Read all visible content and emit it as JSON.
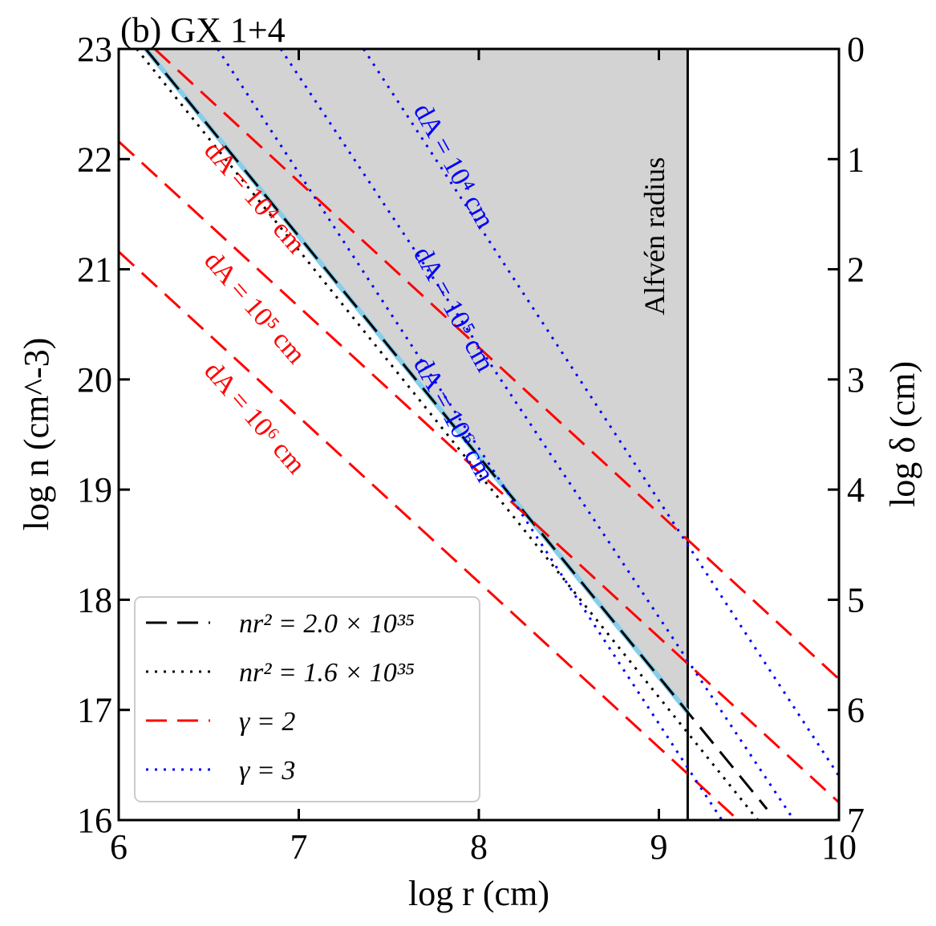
{
  "chart_data": {
    "type": "line",
    "title": "(b) GX 1+4",
    "xlabel": "log r (cm)",
    "ylabel": "log n (cm^-3)",
    "y2label": "log δ (cm)",
    "xlim": [
      6,
      10
    ],
    "ylim": [
      16,
      23
    ],
    "y2lim": [
      0,
      7
    ],
    "x_ticks": [
      "6",
      "7",
      "8",
      "9",
      "10"
    ],
    "y_ticks": [
      "16",
      "17",
      "18",
      "19",
      "20",
      "21",
      "22",
      "23"
    ],
    "y2_ticks": [
      "0",
      "1",
      "2",
      "3",
      "4",
      "5",
      "6",
      "7"
    ],
    "alfven_radius_log_r": 9.16,
    "shaded_region": "accretion region: log r from 6 to 9.16, between nr^2 = 2.0x10^35 line and log n = 23",
    "series": [
      {
        "name": "nr^2 = 2.0x10^35",
        "style": "dashed",
        "color": "#000000",
        "width": 3,
        "points": [
          [
            6.15,
            23.0
          ],
          [
            9.6,
            16.1
          ]
        ]
      },
      {
        "name": "nr^2 = 1.6x10^35",
        "style": "dotted",
        "color": "#000000",
        "width": 3,
        "points": [
          [
            6.1,
            23.0
          ],
          [
            9.55,
            16.0
          ]
        ]
      },
      {
        "name": "accretion column (fill boundary)",
        "style": "solid",
        "color": "#87ceeb",
        "width": 6,
        "legend": false,
        "points": [
          [
            6.15,
            23.0
          ],
          [
            9.16,
            16.98
          ]
        ]
      },
      {
        "name": "gamma = 2, dA = 10^4 cm",
        "style": "dashed",
        "color": "#ff0000",
        "width": 3,
        "points": [
          [
            6.2,
            23.0
          ],
          [
            10.0,
            17.28
          ]
        ]
      },
      {
        "name": "gamma = 2, dA = 10^5 cm",
        "style": "dashed",
        "color": "#ff0000",
        "width": 3,
        "points": [
          [
            6.0,
            22.16
          ],
          [
            10.0,
            16.16
          ]
        ]
      },
      {
        "name": "gamma = 2, dA = 10^6 cm",
        "style": "dashed",
        "color": "#ff0000",
        "width": 3,
        "points": [
          [
            6.0,
            21.16
          ],
          [
            9.44,
            16.0
          ]
        ]
      },
      {
        "name": "gamma = 3, dA = 10^4 cm",
        "style": "dotted",
        "color": "#0000ff",
        "width": 3,
        "points": [
          [
            7.36,
            23.0
          ],
          [
            10.0,
            16.4
          ]
        ]
      },
      {
        "name": "gamma = 3, dA = 10^5 cm",
        "style": "dotted",
        "color": "#0000ff",
        "width": 3,
        "points": [
          [
            6.9,
            23.0
          ],
          [
            9.75,
            16.0
          ]
        ]
      },
      {
        "name": "gamma = 3, dA = 10^6 cm",
        "style": "dotted",
        "color": "#0000ff",
        "width": 3,
        "points": [
          [
            6.55,
            23.0
          ],
          [
            9.35,
            16.0
          ]
        ]
      }
    ],
    "legend": {
      "position": "bottom-left",
      "entries": [
        {
          "label": "nr² = 2.0 × 10³⁵",
          "style": "dashed",
          "color": "#000000"
        },
        {
          "label": "nr² = 1.6 × 10³⁵",
          "style": "dotted",
          "color": "#000000"
        },
        {
          "label": "γ = 2",
          "style": "dashed",
          "color": "#ff0000"
        },
        {
          "label": "γ = 3",
          "style": "dotted",
          "color": "#0000ff"
        }
      ]
    },
    "annotations": [
      {
        "text": "Alfvén radius",
        "color": "#000000",
        "x": 9.03,
        "y": 21.3,
        "angle": -90
      },
      {
        "text": "dA = 10⁴ cm",
        "color": "#ff0000",
        "x": 6.72,
        "y": 21.6,
        "angle": 49
      },
      {
        "text": "dA = 10⁵ cm",
        "color": "#ff0000",
        "x": 6.72,
        "y": 20.6,
        "angle": 49
      },
      {
        "text": "dA = 10⁶ cm",
        "color": "#ff0000",
        "x": 6.72,
        "y": 19.6,
        "angle": 49
      },
      {
        "text": "dA = 10⁴ cm",
        "color": "#0000ff",
        "x": 7.82,
        "y": 21.9,
        "angle": 61
      },
      {
        "text": "dA = 10⁵ cm",
        "color": "#0000ff",
        "x": 7.82,
        "y": 20.6,
        "angle": 61
      },
      {
        "text": "dA = 10⁶ cm",
        "color": "#0000ff",
        "x": 7.82,
        "y": 19.6,
        "angle": 61
      }
    ],
    "colors": {
      "fill": "#d3d3d3",
      "alfven_line": "#000000"
    }
  }
}
